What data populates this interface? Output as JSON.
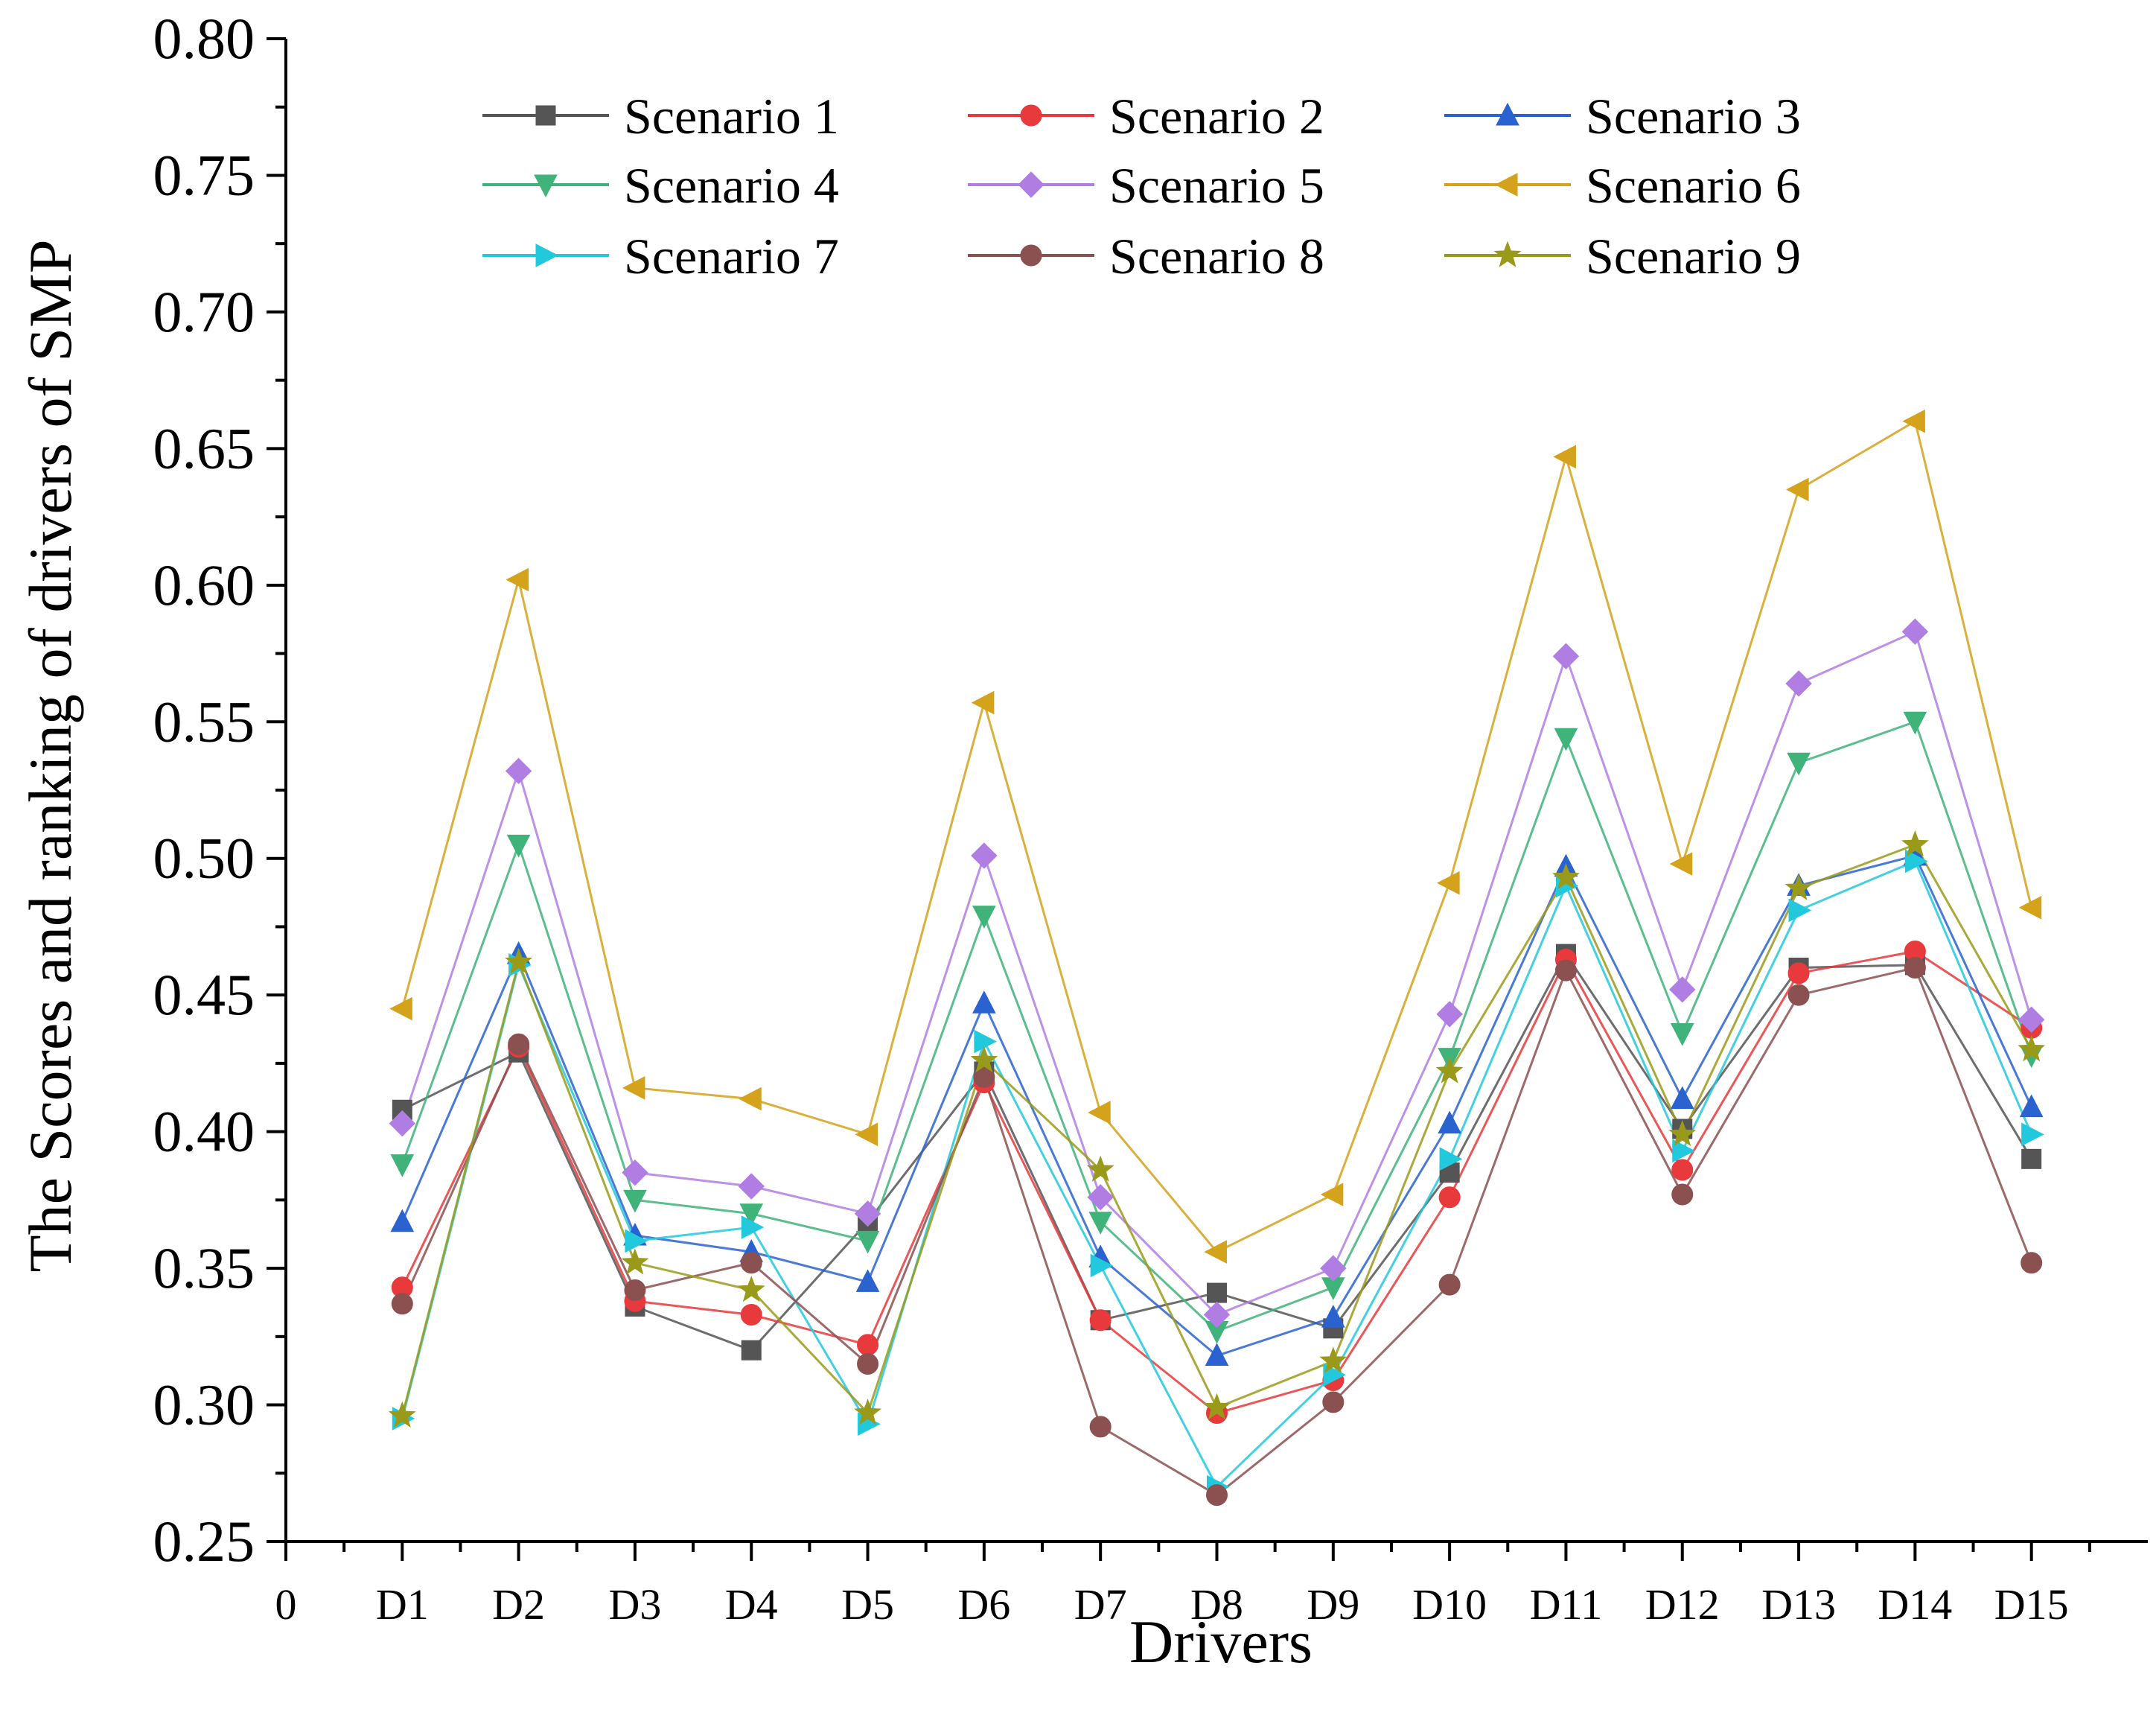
{
  "chart_data": {
    "type": "line",
    "title": "",
    "xlabel": "Drivers",
    "ylabel": "The Scores and ranking of drivers of SMP",
    "x_tick_labels": [
      "0",
      "D1",
      "D2",
      "D3",
      "D4",
      "D5",
      "D6",
      "D7",
      "D8",
      "D9",
      "D10",
      "D11",
      "D12",
      "D13",
      "D14",
      "D15"
    ],
    "categories": [
      "D1",
      "D2",
      "D3",
      "D4",
      "D5",
      "D6",
      "D7",
      "D8",
      "D9",
      "D10",
      "D11",
      "D12",
      "D13",
      "D14",
      "D15"
    ],
    "xlim": [
      0,
      16
    ],
    "ylim": [
      0.25,
      0.8
    ],
    "y_ticks": [
      "0.25",
      "0.30",
      "0.35",
      "0.40",
      "0.45",
      "0.50",
      "0.55",
      "0.60",
      "0.65",
      "0.70",
      "0.75",
      "0.80"
    ],
    "grid": false,
    "legend": "top, 3 columns",
    "series": [
      {
        "name": "Scenario 1",
        "color": "#555555",
        "marker": "square",
        "values": [
          0.408,
          0.429,
          0.336,
          0.32,
          0.367,
          0.422,
          0.331,
          0.341,
          0.328,
          0.385,
          0.465,
          0.401,
          0.46,
          0.461,
          0.39
        ]
      },
      {
        "name": "Scenario 2",
        "color": "#e8393c",
        "marker": "circle",
        "values": [
          0.343,
          0.431,
          0.338,
          0.333,
          0.322,
          0.418,
          0.331,
          0.297,
          0.309,
          0.376,
          0.463,
          0.386,
          0.458,
          0.466,
          0.438
        ]
      },
      {
        "name": "Scenario 3",
        "color": "#2a62cf",
        "marker": "triangle-up",
        "values": [
          0.367,
          0.465,
          0.362,
          0.356,
          0.345,
          0.447,
          0.354,
          0.318,
          0.332,
          0.403,
          0.497,
          0.412,
          0.49,
          0.501,
          0.409
        ]
      },
      {
        "name": "Scenario 4",
        "color": "#3fb37a",
        "marker": "triangle-down",
        "values": [
          0.388,
          0.505,
          0.375,
          0.37,
          0.36,
          0.479,
          0.367,
          0.327,
          0.343,
          0.427,
          0.544,
          0.436,
          0.535,
          0.55,
          0.428
        ]
      },
      {
        "name": "Scenario 5",
        "color": "#b07ee3",
        "marker": "diamond",
        "values": [
          0.403,
          0.532,
          0.385,
          0.38,
          0.37,
          0.501,
          0.376,
          0.333,
          0.35,
          0.443,
          0.574,
          0.452,
          0.564,
          0.583,
          0.441
        ]
      },
      {
        "name": "Scenario 6",
        "color": "#d4a21b",
        "marker": "triangle-left",
        "values": [
          0.445,
          0.602,
          0.416,
          0.412,
          0.399,
          0.557,
          0.407,
          0.356,
          0.377,
          0.491,
          0.647,
          0.498,
          0.635,
          0.66,
          0.482
        ]
      },
      {
        "name": "Scenario 7",
        "color": "#22c9dc",
        "marker": "triangle-right",
        "values": [
          0.295,
          0.461,
          0.36,
          0.365,
          0.293,
          0.433,
          0.351,
          0.27,
          0.311,
          0.39,
          0.49,
          0.393,
          0.481,
          0.499,
          0.399
        ]
      },
      {
        "name": "Scenario 8",
        "color": "#8b5050",
        "marker": "circle",
        "values": [
          0.337,
          0.432,
          0.342,
          0.352,
          0.315,
          0.42,
          0.292,
          0.267,
          0.301,
          0.344,
          0.459,
          0.377,
          0.45,
          0.46,
          0.352
        ]
      },
      {
        "name": "Scenario 9",
        "color": "#9a9a1a",
        "marker": "star",
        "values": [
          0.296,
          0.462,
          0.352,
          0.342,
          0.297,
          0.426,
          0.386,
          0.299,
          0.316,
          0.422,
          0.493,
          0.399,
          0.489,
          0.505,
          0.43
        ]
      }
    ]
  }
}
